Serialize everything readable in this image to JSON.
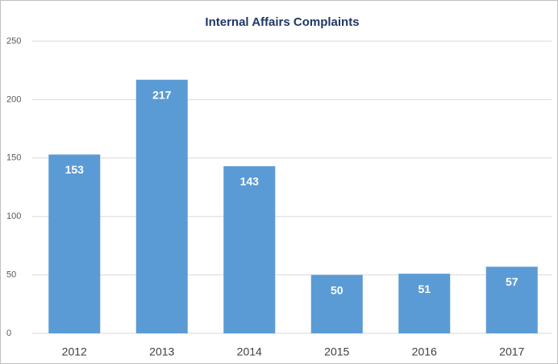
{
  "chart_data": {
    "type": "bar",
    "title": "Internal Affairs Complaints",
    "categories": [
      "2012",
      "2013",
      "2014",
      "2015",
      "2016",
      "2017"
    ],
    "values": [
      153,
      217,
      143,
      50,
      51,
      57
    ],
    "color": "#5b9bd5",
    "ylim": [
      0,
      250
    ],
    "yticks": [
      0,
      50,
      100,
      150,
      200,
      250
    ],
    "grid": true
  }
}
